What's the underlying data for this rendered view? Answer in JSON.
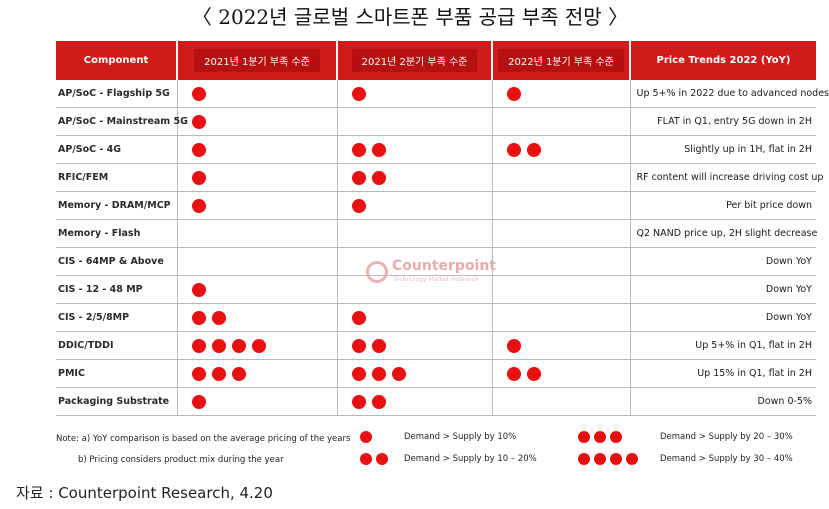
{
  "title": "〈 2022년 글로벌 스마트폰 부품 공급 부족 전망 〉",
  "colors": {
    "header_red": "#d11a1a",
    "dot_red": "#e81010"
  },
  "watermark": {
    "name": "Counterpoint",
    "sub": "Technology Market Research"
  },
  "source": "자료 : Counterpoint Research, 4.20",
  "chart_data": {
    "type": "table",
    "columns": [
      "Component",
      "2021년 1분기 부족 수준",
      "2021년 2분기 부족 수준",
      "2022년 1분기 부족 수준",
      "Price Trends 2022 (YoY)"
    ],
    "rows": [
      {
        "component": "AP/SoC - Flagship 5G",
        "q1_2021": 1,
        "q2_2021": 1,
        "q1_2022": 1,
        "price": "Up 5+% in 2022 due to advanced nodes"
      },
      {
        "component": "AP/SoC - Mainstream 5G",
        "q1_2021": 1,
        "q2_2021": 0,
        "q1_2022": 0,
        "price": "FLAT in Q1, entry 5G down in 2H"
      },
      {
        "component": "AP/SoC - 4G",
        "q1_2021": 1,
        "q2_2021": 2,
        "q1_2022": 2,
        "price": "Slightly up in 1H, flat in 2H"
      },
      {
        "component": "RFIC/FEM",
        "q1_2021": 1,
        "q2_2021": 2,
        "q1_2022": 0,
        "price": "RF content will increase driving cost up"
      },
      {
        "component": "Memory - DRAM/MCP",
        "q1_2021": 1,
        "q2_2021": 1,
        "q1_2022": 0,
        "price": "Per bit price down"
      },
      {
        "component": "Memory - Flash",
        "q1_2021": 0,
        "q2_2021": 0,
        "q1_2022": 0,
        "price": "Q2 NAND price up, 2H slight decrease"
      },
      {
        "component": "CIS - 64MP & Above",
        "q1_2021": 0,
        "q2_2021": 0,
        "q1_2022": 0,
        "price": "Down YoY"
      },
      {
        "component": "CIS - 12 - 48 MP",
        "q1_2021": 1,
        "q2_2021": 0,
        "q1_2022": 0,
        "price": "Down YoY"
      },
      {
        "component": "CIS - 2/5/8MP",
        "q1_2021": 2,
        "q2_2021": 1,
        "q1_2022": 0,
        "price": "Down YoY"
      },
      {
        "component": "DDIC/TDDI",
        "q1_2021": 4,
        "q2_2021": 2,
        "q1_2022": 1,
        "price": "Up 5+% in Q1, flat in 2H"
      },
      {
        "component": "PMIC",
        "q1_2021": 3,
        "q2_2021": 3,
        "q1_2022": 2,
        "price": "Up 15% in Q1, flat in 2H"
      },
      {
        "component": "Packaging Substrate",
        "q1_2021": 1,
        "q2_2021": 2,
        "q1_2022": 0,
        "price": "Down 0-5%"
      }
    ],
    "notes": [
      "Note: a) YoY comparison is based on the average pricing of the years",
      "b) Pricing considers product mix during the year"
    ],
    "legend": [
      {
        "dots": 1,
        "label": "Demand > Supply by 10%"
      },
      {
        "dots": 2,
        "label": "Demand > Supply by 10 – 20%"
      },
      {
        "dots": 3,
        "label": "Demand > Supply by 20 – 30%"
      },
      {
        "dots": 4,
        "label": "Demand > Supply by 30 – 40%"
      }
    ]
  }
}
